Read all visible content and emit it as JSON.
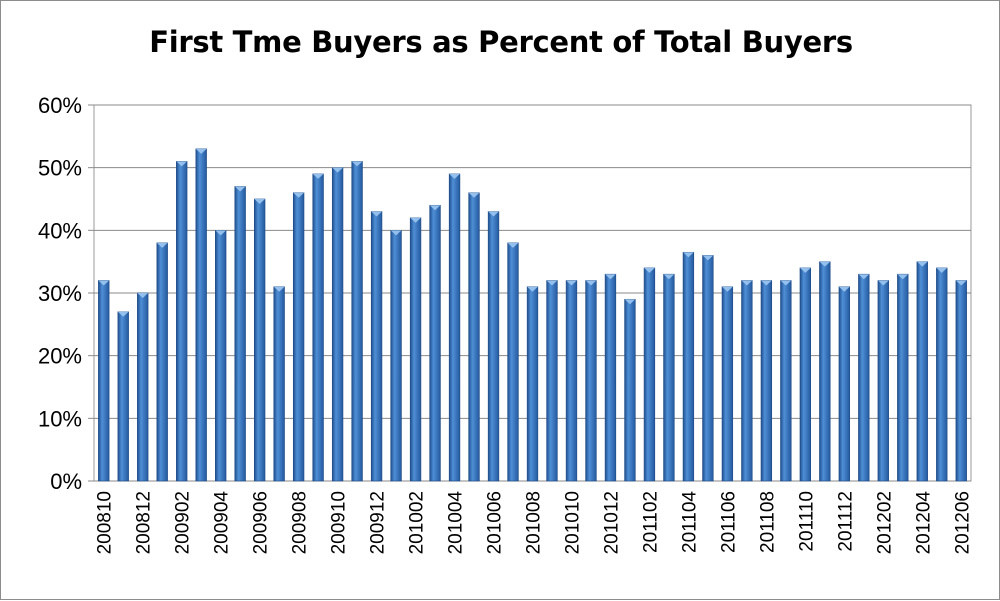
{
  "chart_data": {
    "type": "bar",
    "title": "First Tme Buyers as Percent of Total Buyers",
    "xlabel": "",
    "ylabel": "",
    "ylim": [
      0,
      60
    ],
    "yticks": [
      "0%",
      "10%",
      "20%",
      "30%",
      "40%",
      "50%",
      "60%"
    ],
    "grid": true,
    "legend": "none",
    "bar_color": "#2e6db4",
    "categories": [
      "200810",
      "200811",
      "200812",
      "200901",
      "200902",
      "200903",
      "200904",
      "200905",
      "200906",
      "200907",
      "200908",
      "200909",
      "200910",
      "200911",
      "200912",
      "201001",
      "201002",
      "201003",
      "201004",
      "201005",
      "201006",
      "201007",
      "201008",
      "201009",
      "201010",
      "201011",
      "201012",
      "201101",
      "201102",
      "201103",
      "201104",
      "201105",
      "201106",
      "201107",
      "201108",
      "201109",
      "201110",
      "201111",
      "201112",
      "201201",
      "201202",
      "201203",
      "201204",
      "201205",
      "201206"
    ],
    "x_tick_labels": [
      "200810",
      "200812",
      "200902",
      "200904",
      "200906",
      "200908",
      "200910",
      "200912",
      "201002",
      "201004",
      "201006",
      "201008",
      "201010",
      "201012",
      "201102",
      "201104",
      "201106",
      "201108",
      "201110",
      "201112",
      "201202",
      "201204",
      "201206"
    ],
    "values": [
      32,
      27,
      30,
      38,
      51,
      53,
      40,
      47,
      45,
      31,
      46,
      49,
      50,
      51,
      43,
      40,
      42,
      44,
      49,
      46,
      43,
      38,
      31,
      32,
      32,
      32,
      33,
      29,
      34,
      33,
      36.5,
      36,
      31,
      32,
      32,
      32,
      34,
      35,
      31,
      33,
      32,
      33,
      35,
      34,
      32
    ]
  }
}
